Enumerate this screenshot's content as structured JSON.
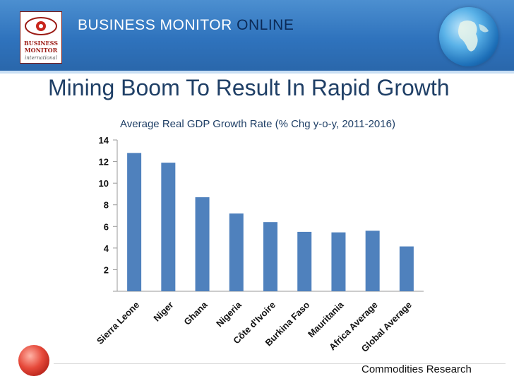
{
  "header": {
    "logo_lines": [
      "BUSINESS",
      "MONITOR",
      "international"
    ],
    "brand_part1": "BUSINESS MONITOR",
    "brand_part2": "ONLINE"
  },
  "slide_title": "Mining Boom To Result In Rapid Growth",
  "chart_data": {
    "type": "bar",
    "title": "Average Real GDP Growth Rate (% Chg y-o-y, 2011-2016)",
    "xlabel": "",
    "ylabel": "",
    "categories": [
      "Sierra Leone",
      "Niger",
      "Ghana",
      "Nigeria",
      "Côte d'Ivoire",
      "Burkina Faso",
      "Mauritania",
      "Africa Average",
      "Global Average"
    ],
    "values": [
      12.8,
      11.9,
      8.7,
      7.2,
      6.4,
      5.5,
      5.45,
      5.6,
      4.15
    ],
    "ylim": [
      0,
      14
    ],
    "yticks": [
      2,
      4,
      6,
      8,
      10,
      12,
      14
    ],
    "color": "#4f81bd"
  },
  "footer": {
    "text": "Commodities Research"
  }
}
